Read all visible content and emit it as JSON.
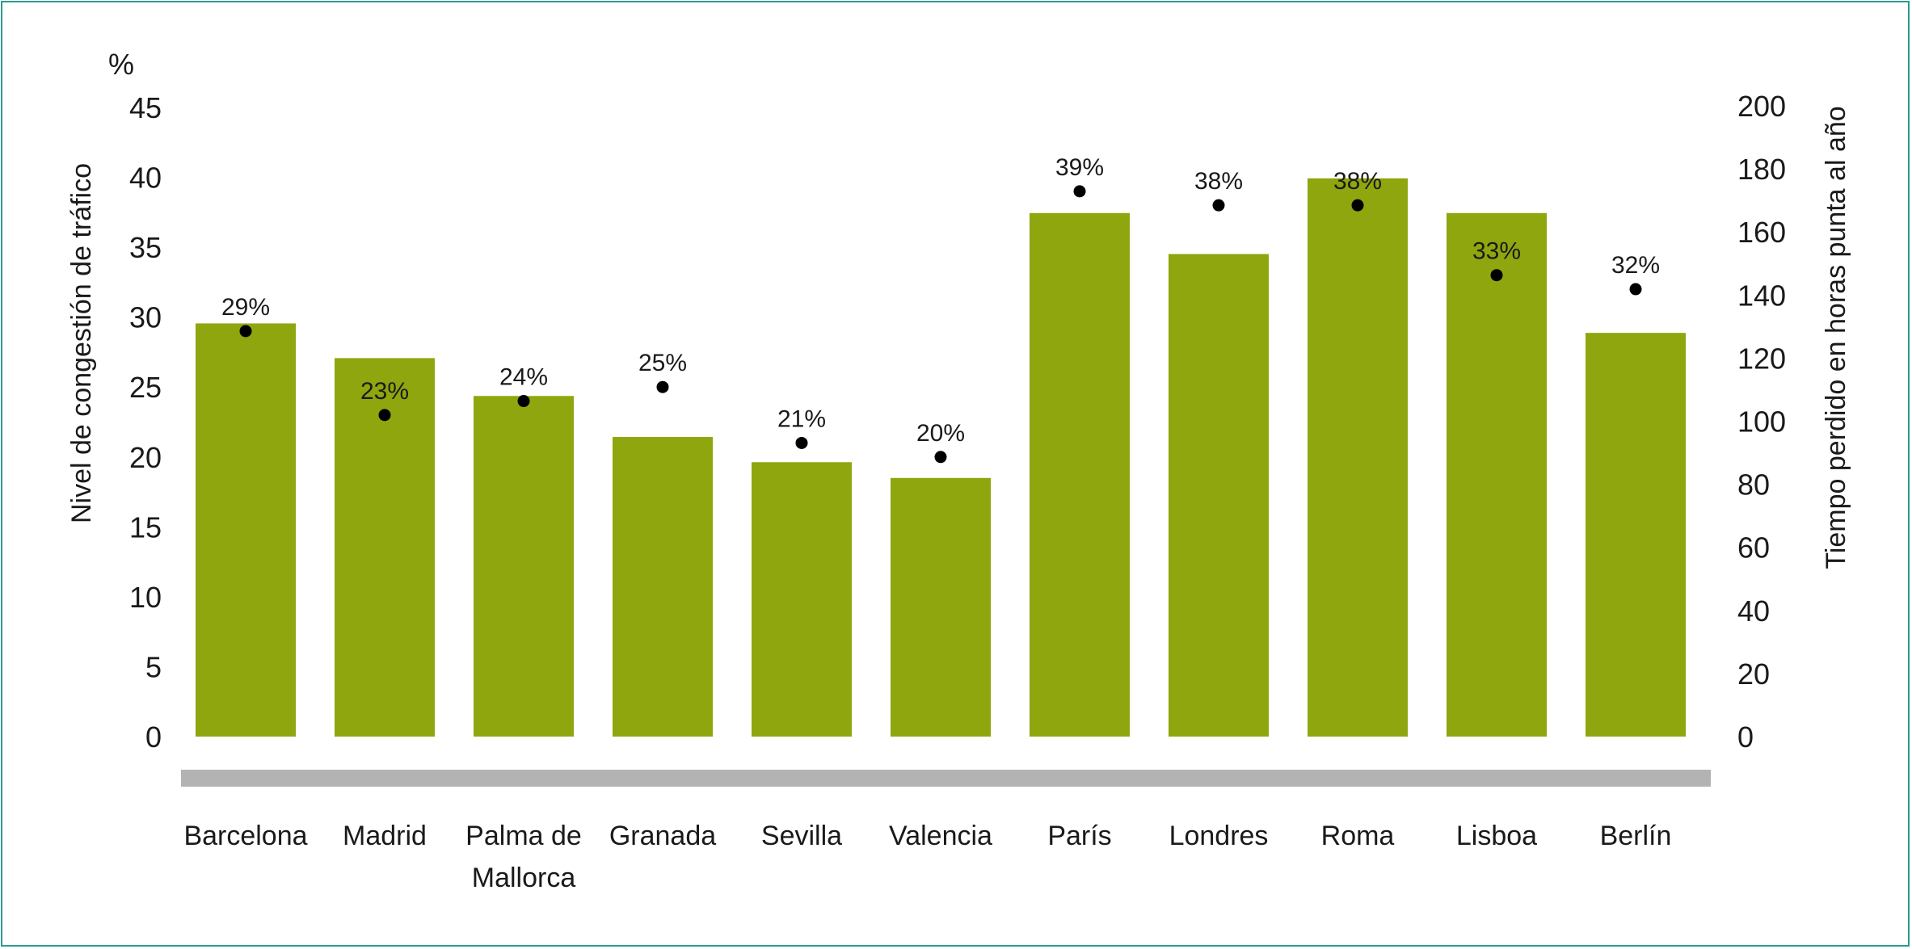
{
  "chart_data": {
    "type": "bar",
    "categories": [
      "Barcelona",
      "Madrid",
      "Palma de Mallorca",
      "Granada",
      "Sevilla",
      "Valencia",
      "París",
      "Londres",
      "Roma",
      "Lisboa",
      "Berlín"
    ],
    "category_lines": [
      [
        "Barcelona"
      ],
      [
        "Madrid"
      ],
      [
        "Palma de",
        "Mallorca"
      ],
      [
        "Granada"
      ],
      [
        "Sevilla"
      ],
      [
        "Valencia"
      ],
      [
        "París"
      ],
      [
        "Londres"
      ],
      [
        "Roma"
      ],
      [
        "Lisboa"
      ],
      [
        "Berlín"
      ]
    ],
    "series": [
      {
        "name": "",
        "type": "bar",
        "axis": "right",
        "values": [
          131,
          120,
          108,
          95,
          87,
          82,
          166,
          153,
          177,
          166,
          128
        ]
      },
      {
        "name": "",
        "type": "scatter",
        "axis": "left",
        "values": [
          29,
          23,
          24,
          25,
          21,
          20,
          39,
          38,
          38,
          33,
          32
        ],
        "labels": [
          "29%",
          "23%",
          "24%",
          "25%",
          "21%",
          "20%",
          "39%",
          "38%",
          "38%",
          "33%",
          "32%"
        ]
      }
    ],
    "left_axis": {
      "unit": "%",
      "label": "Nivel de congestión de tráfico",
      "ticks": [
        0,
        5,
        10,
        15,
        20,
        25,
        30,
        35,
        40,
        45
      ],
      "range": [
        0,
        45
      ]
    },
    "right_axis": {
      "label": "Tiempo perdido en horas punta al año",
      "ticks": [
        0,
        20,
        40,
        60,
        80,
        100,
        120,
        140,
        160,
        180,
        200
      ],
      "range": [
        0,
        200
      ]
    },
    "colors": {
      "bar": "#8fa60e",
      "marker": "#000000",
      "baseline": "#b3b3b3",
      "border": "#2a9a8f"
    },
    "grid": false,
    "legend": "none"
  }
}
